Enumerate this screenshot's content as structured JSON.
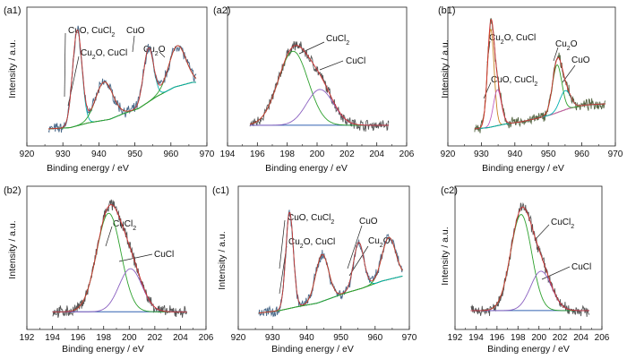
{
  "chart_data": [
    {
      "type": "line",
      "panel_label": "(a1)",
      "xlabel": "Binding energy / eV",
      "ylabel": "Intensity / a.u.",
      "xlim": [
        920,
        970
      ],
      "xticks": [
        920,
        930,
        940,
        950,
        960,
        970
      ],
      "annotations": [
        "CuO, CuCl2",
        "Cu2O, CuCl",
        "CuO",
        "Cu2O"
      ],
      "components": [
        {
          "color": "#00b0b0",
          "center": 934.0,
          "width": 1.3,
          "height": 0.8
        },
        {
          "color": "#2ca02c",
          "center": 941.5,
          "width": 2.4,
          "height": 0.32
        },
        {
          "color": "#00b0b0",
          "center": 953.8,
          "width": 1.4,
          "height": 0.45
        },
        {
          "color": "#2ca02c",
          "center": 961.8,
          "width": 2.4,
          "height": 0.34
        }
      ],
      "baseline": {
        "color": "#e07020",
        "x": [
          926,
          932,
          937,
          943,
          947,
          951,
          956,
          961,
          966
        ],
        "y": [
          0.05,
          0.06,
          0.1,
          0.13,
          0.18,
          0.22,
          0.32,
          0.4,
          0.44
        ]
      },
      "envelope_color": "#d03030",
      "raw_color": "#4a6a8a",
      "data_range": [
        926,
        967
      ]
    },
    {
      "type": "line",
      "panel_label": "(a2)",
      "xlabel": "Binding energy / eV",
      "ylabel": "",
      "xlim": [
        194,
        206
      ],
      "xticks": [
        194,
        196,
        198,
        200,
        202,
        204,
        206
      ],
      "annotations": [
        "CuCl2",
        "CuCl"
      ],
      "components": [
        {
          "color": "#2ca02c",
          "center": 198.4,
          "width": 1.0,
          "height": 0.62
        },
        {
          "color": "#8a60c0",
          "center": 200.2,
          "width": 0.9,
          "height": 0.3
        }
      ],
      "baseline": {
        "color": "#3060b0",
        "x": [
          195.5,
          205
        ],
        "y": [
          0.08,
          0.08
        ]
      },
      "envelope_color": "#d03030",
      "raw_color": "#555555",
      "data_range": [
        195.5,
        204.8
      ]
    },
    {
      "type": "line",
      "panel_label": "(b1)",
      "xlabel": "Binding energy / eV",
      "ylabel": "Intensity / a.u.",
      "xlim": [
        920,
        970
      ],
      "xticks": [
        920,
        930,
        940,
        950,
        960,
        970
      ],
      "annotations": [
        "Cu2O, CuCl",
        "CuO, CuCl2",
        "Cu2O",
        "CuO"
      ],
      "components": [
        {
          "color": "#c88020",
          "center": 932.8,
          "width": 1.0,
          "height": 0.82
        },
        {
          "color": "#c060c0",
          "center": 934.8,
          "width": 1.2,
          "height": 0.3
        },
        {
          "color": "#2ca02c",
          "center": 952.6,
          "width": 1.4,
          "height": 0.4
        },
        {
          "color": "#00b0b0",
          "center": 955.0,
          "width": 1.6,
          "height": 0.16
        }
      ],
      "baseline": {
        "color": "#8b5a2b",
        "x": [
          928,
          932,
          937,
          942,
          947,
          951,
          956,
          961,
          967
        ],
        "y": [
          0.05,
          0.06,
          0.09,
          0.11,
          0.14,
          0.17,
          0.22,
          0.25,
          0.26
        ]
      },
      "envelope_color": "#d03030",
      "raw_color": "#556644",
      "data_range": [
        928,
        967
      ]
    },
    {
      "type": "line",
      "panel_label": "(b2)",
      "xlabel": "Binding energy / eV",
      "ylabel": "Intensity / a.u.",
      "xlim": [
        192,
        206
      ],
      "xticks": [
        192,
        194,
        196,
        198,
        200,
        202,
        204,
        206
      ],
      "annotations": [
        "CuCl2",
        "CuCl"
      ],
      "components": [
        {
          "color": "#2ca02c",
          "center": 198.4,
          "width": 0.95,
          "height": 0.8
        },
        {
          "color": "#8a60c0",
          "center": 200.1,
          "width": 0.9,
          "height": 0.35
        }
      ],
      "baseline": {
        "color": "#3060b0",
        "x": [
          194,
          204.5
        ],
        "y": [
          0.05,
          0.05
        ]
      },
      "envelope_color": "#d03030",
      "raw_color": "#555555",
      "data_range": [
        194,
        204.5
      ]
    },
    {
      "type": "line",
      "panel_label": "(c1)",
      "xlabel": "Binding energy / eV",
      "ylabel": "Intensity / a.u.",
      "xlim": [
        920,
        970
      ],
      "xticks": [
        920,
        930,
        940,
        950,
        960,
        970
      ],
      "annotations": [
        "CuO, CuCl2",
        "Cu2O, CuCl",
        "CuO",
        "Cu2O"
      ],
      "components": [
        {
          "color": "#00b0b0",
          "center": 935.0,
          "width": 1.1,
          "height": 0.78
        },
        {
          "color": "#2ca02c",
          "center": 944.5,
          "width": 1.9,
          "height": 0.38
        },
        {
          "color": "#00b0b0",
          "center": 955.2,
          "width": 1.5,
          "height": 0.38
        },
        {
          "color": "#2ca02c",
          "center": 964.0,
          "width": 2.0,
          "height": 0.34
        }
      ],
      "baseline": {
        "color": "#e07020",
        "x": [
          926,
          932,
          937,
          943,
          947,
          951,
          956,
          962,
          968
        ],
        "y": [
          0.04,
          0.06,
          0.09,
          0.12,
          0.16,
          0.2,
          0.24,
          0.3,
          0.34
        ]
      },
      "envelope_color": "#d03030",
      "raw_color": "#4a6a8a",
      "data_range": [
        926,
        968
      ]
    },
    {
      "type": "line",
      "panel_label": "(c2)",
      "xlabel": "Binding energy / eV",
      "ylabel": "Intensity / a.u.",
      "xlim": [
        192,
        206
      ],
      "xticks": [
        192,
        194,
        196,
        198,
        200,
        202,
        204,
        206
      ],
      "annotations": [
        "CuCl2",
        "CuCl"
      ],
      "components": [
        {
          "color": "#2ca02c",
          "center": 198.3,
          "width": 1.0,
          "height": 0.78
        },
        {
          "color": "#8a60c0",
          "center": 200.2,
          "width": 1.0,
          "height": 0.32
        }
      ],
      "baseline": {
        "color": "#3060b0",
        "x": [
          193.5,
          205
        ],
        "y": [
          0.06,
          0.06
        ]
      },
      "envelope_color": "#d03030",
      "raw_color": "#555555",
      "data_range": [
        193.5,
        204.8
      ]
    }
  ]
}
